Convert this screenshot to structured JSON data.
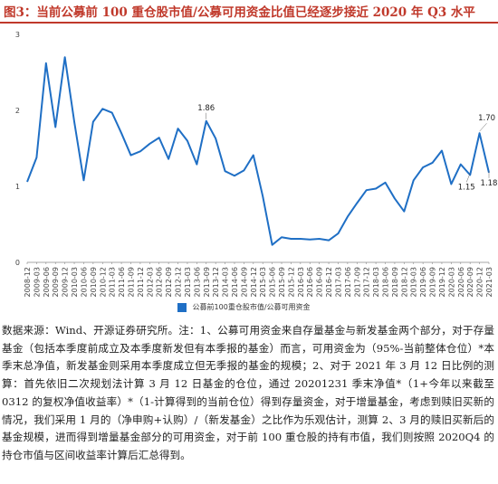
{
  "header": {
    "title": "图3：当前公募前 100 重仓股市值/公募可用资金比值已经逐步接近 2020 年 Q3 水平"
  },
  "colors": {
    "line": "#1f6fc5",
    "title": "#c0392b"
  },
  "chart_data": {
    "type": "line",
    "title": "",
    "xlabel": "",
    "ylabel": "",
    "ylim": [
      0,
      3
    ],
    "yticks": [
      0,
      1,
      2,
      3
    ],
    "grid": false,
    "legend_position": "bottom",
    "x": [
      "2008-12",
      "2009-03",
      "2009-06",
      "2009-09",
      "2009-12",
      "2010-03",
      "2010-06",
      "2010-09",
      "2010-12",
      "2011-03",
      "2011-06",
      "2011-09",
      "2011-12",
      "2012-03",
      "2012-06",
      "2012-09",
      "2012-12",
      "2013-03",
      "2013-06",
      "2013-09",
      "2013-12",
      "2014-03",
      "2014-06",
      "2014-09",
      "2014-12",
      "2015-03",
      "2015-06",
      "2015-09",
      "2015-12",
      "2016-03",
      "2016-06",
      "2016-09",
      "2016-12",
      "2017-03",
      "2017-06",
      "2017-09",
      "2017-12",
      "2018-03",
      "2018-06",
      "2018-09",
      "2018-12",
      "2019-03",
      "2019-06",
      "2019-09",
      "2019-12",
      "2020-03",
      "2020-06",
      "2020-09",
      "2020-12",
      "2021-03"
    ],
    "series": [
      {
        "name": "公募前100重仓股市值/公募可用资金",
        "values": [
          1.06,
          1.38,
          2.62,
          1.78,
          2.7,
          1.85,
          1.08,
          1.85,
          2.02,
          1.97,
          1.7,
          1.41,
          1.46,
          1.56,
          1.64,
          1.36,
          1.76,
          1.6,
          1.29,
          1.86,
          1.63,
          1.2,
          1.14,
          1.21,
          1.41,
          0.87,
          0.23,
          0.33,
          0.31,
          0.31,
          0.3,
          0.31,
          0.29,
          0.38,
          0.6,
          0.78,
          0.95,
          0.97,
          1.05,
          0.84,
          0.67,
          1.08,
          1.25,
          1.31,
          1.47,
          1.03,
          1.29,
          1.15,
          1.7,
          1.18
        ]
      }
    ],
    "annotations": [
      {
        "x": "2013-09",
        "y": 1.86,
        "text": "1.86"
      },
      {
        "x": "2020-09",
        "y": 1.15,
        "text": "1.15"
      },
      {
        "x": "2020-12",
        "y": 1.7,
        "text": "1.70"
      },
      {
        "x": "2021-03",
        "y": 1.18,
        "text": "1.18"
      }
    ]
  },
  "note": {
    "text": "数据来源：Wind、开源证券研究所。注：1、公募可用资金来自存量基金与新发基金两个部分，对于存量基金（包括本季度前成立及本季度新发但有本季报的基金）而言，可用资金为（95%-当前整体仓位）*本季末总净值，新发基金则采用本季度成立但无季报的基金的规模；2、对于 2021 年 3 月 12 日比例的测算：首先依旧二次规划法计算 3 月 12 日基金的仓位，通过 20201231 季末净值*（1+今年以来截至 0312 的复权净值收益率）*（1-计算得到的当前仓位）得到存量资金，对于增量基金，考虑到赎旧买新的情况，我们采用 1 月的（净申购+认购）/（新发基金）之比作为乐观估计，测算 2、3 月的赎旧买新后的基金规模，进而得到增量基金部分的可用资金，对于前 100 重仓股的持有市值，我们则按照 2020Q4 的持仓市值与区间收益率计算后汇总得到。"
  }
}
